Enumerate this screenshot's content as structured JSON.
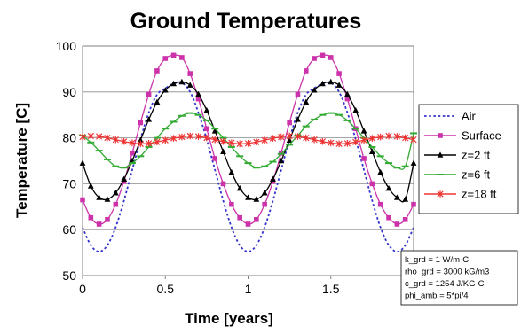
{
  "chart_data": {
    "type": "line",
    "title": "Ground Temperatures",
    "xlabel": "Time [years]",
    "ylabel": "Temperature [C]",
    "xlim": [
      0,
      2
    ],
    "ylim": [
      50,
      100
    ],
    "xticks": [
      0,
      0.5,
      1,
      1.5,
      2
    ],
    "xtick_labels": [
      "0",
      "0.5",
      "1",
      "1.5",
      "2"
    ],
    "yticks": [
      50,
      60,
      70,
      80,
      90,
      100
    ],
    "ytick_labels": [
      "50",
      "60",
      "70",
      "80",
      "90",
      "100"
    ],
    "grid": "horizontal",
    "legend": "right",
    "x": [
      0,
      0.05,
      0.1,
      0.15,
      0.2,
      0.25,
      0.3,
      0.35,
      0.4,
      0.45,
      0.5,
      0.55,
      0.6,
      0.65,
      0.7,
      0.75,
      0.8,
      0.85,
      0.9,
      0.95,
      1.0,
      1.05,
      1.1,
      1.15,
      1.2,
      1.25,
      1.3,
      1.35,
      1.4,
      1.45,
      1.5,
      1.55,
      1.6,
      1.65,
      1.7,
      1.75,
      1.8,
      1.85,
      1.9,
      1.95,
      2.0
    ],
    "series": [
      {
        "name": "Air",
        "color": "#3333cc",
        "style": "dotted",
        "marker": "none",
        "values": [
          60.5,
          56.6,
          55.2,
          56.6,
          60.5,
          66.3,
          73.0,
          79.7,
          85.5,
          89.4,
          90.8,
          91.8,
          92.0,
          90.0,
          85.5,
          79.7,
          73.0,
          66.3,
          60.5,
          56.6,
          55.2,
          56.6,
          60.5,
          66.3,
          73.0,
          79.7,
          85.5,
          89.4,
          90.8,
          91.8,
          92.0,
          90.0,
          85.5,
          79.7,
          73.0,
          66.3,
          60.5,
          56.6,
          55.2,
          56.6,
          60.5
        ]
      },
      {
        "name": "Surface",
        "color": "#cc33aa",
        "style": "solid",
        "marker": "square",
        "values": [
          66.5,
          62.6,
          61.2,
          62.2,
          65.5,
          70.5,
          76.7,
          83.3,
          89.5,
          94.6,
          97.3,
          98.0,
          97.5,
          94.0,
          88.5,
          82.0,
          75.5,
          70.0,
          65.5,
          62.6,
          61.2,
          62.2,
          65.5,
          70.5,
          76.7,
          83.3,
          89.5,
          94.6,
          97.3,
          98.0,
          97.5,
          94.0,
          88.5,
          82.0,
          75.5,
          70.0,
          65.5,
          62.6,
          61.2,
          62.2,
          65.5
        ]
      },
      {
        "name": "z=2 ft",
        "color": "#000000",
        "style": "solid",
        "marker": "triangle",
        "values": [
          74.5,
          69.5,
          67.0,
          66.6,
          68.0,
          71.0,
          75.0,
          79.5,
          84.0,
          87.8,
          90.4,
          91.8,
          92.2,
          91.5,
          89.5,
          86.0,
          81.5,
          77.0,
          72.5,
          69.0,
          67.0,
          66.6,
          68.0,
          71.0,
          75.0,
          79.5,
          84.0,
          87.8,
          90.4,
          91.8,
          92.2,
          91.5,
          89.5,
          86.0,
          81.5,
          77.0,
          72.5,
          69.0,
          67.0,
          66.6,
          74.5
        ]
      },
      {
        "name": "z=6 ft",
        "color": "#33aa33",
        "style": "solid",
        "marker": "dash",
        "values": [
          80.5,
          79.0,
          77.2,
          75.3,
          73.8,
          73.5,
          74.5,
          76.0,
          78.0,
          80.0,
          82.0,
          83.5,
          84.8,
          85.4,
          85.0,
          83.8,
          82.0,
          80.0,
          78.0,
          76.0,
          74.5,
          73.5,
          73.8,
          74.8,
          76.5,
          78.5,
          80.5,
          82.5,
          84.0,
          85.0,
          85.4,
          85.0,
          83.8,
          82.0,
          80.0,
          78.0,
          76.0,
          74.5,
          73.5,
          73.8,
          81.0
        ]
      },
      {
        "name": "z=18 ft",
        "color": "#ee3333",
        "style": "solid",
        "marker": "star",
        "values": [
          80.2,
          80.4,
          80.3,
          80.0,
          79.6,
          79.2,
          78.9,
          78.7,
          78.8,
          79.1,
          79.5,
          79.9,
          80.2,
          80.4,
          80.3,
          80.0,
          79.6,
          79.2,
          78.9,
          78.7,
          78.8,
          79.1,
          79.5,
          79.9,
          80.2,
          80.4,
          80.3,
          80.0,
          79.6,
          79.2,
          78.9,
          78.7,
          78.8,
          79.1,
          79.5,
          79.9,
          80.2,
          80.4,
          80.3,
          80.0,
          79.6
        ]
      }
    ],
    "annotation": [
      "k_grd = 1 W/m-C",
      "rho_grd = 3000 kG/m3",
      "c_grd = 1254 J/KG-C",
      "phi_amb = 5*pi/4"
    ]
  }
}
